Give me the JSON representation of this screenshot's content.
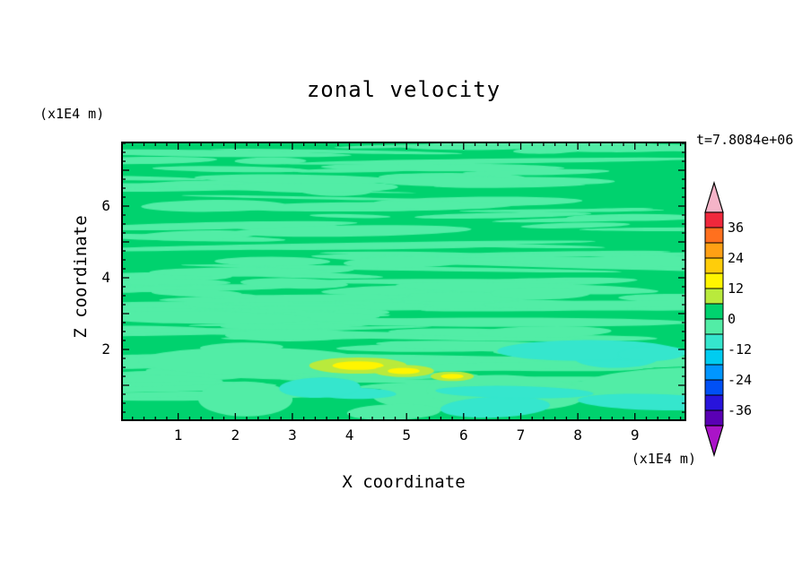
{
  "title": "zonal velocity",
  "time_label": "t=7.8084e+06",
  "axes": {
    "x_label": "X coordinate",
    "y_label": "Z coordinate",
    "x_unit": "(x1E4 m)",
    "y_unit": "(x1E4 m)",
    "x_ticks": [
      1,
      2,
      3,
      4,
      5,
      6,
      7,
      8,
      9
    ],
    "y_ticks": [
      2,
      4,
      6
    ]
  },
  "colorbar": {
    "labels": [
      36,
      24,
      12,
      0,
      -12,
      -24,
      -36
    ],
    "above_color": "#f5b4c8",
    "below_color": "#aa14c8",
    "levels": [
      -42,
      -36,
      -30,
      -24,
      -18,
      -12,
      -6,
      0,
      6,
      12,
      18,
      24,
      30,
      36,
      42
    ],
    "colors": [
      "#5a00b4",
      "#2814dc",
      "#0050f5",
      "#0096ff",
      "#00ccf0",
      "#35e6cd",
      "#52eda6",
      "#00d26e",
      "#b9ea3c",
      "#fff500",
      "#ffcd0a",
      "#ffa014",
      "#ff701e",
      "#f0283c"
    ]
  },
  "chart_data": {
    "type": "heatmap",
    "title": "zonal velocity",
    "xlabel": "X coordinate (x1E4 m)",
    "ylabel": "Z coordinate (x1E4 m)",
    "time": "t=7.8084e+06",
    "x_range": [
      0,
      9.9
    ],
    "y_range": [
      0,
      7.8
    ],
    "contour_interval": 6,
    "value_range_shown": [
      -42,
      42
    ],
    "field_description": "Zonal velocity field is mostly in the 0..6 band (green) with many thin horizontal streaks in the -6..0 band (mint); aqua -12..-6 patches and small yellow 12..18 maxima appear near z~1.5 between x~4 and x~6.",
    "render": {
      "seed": 11,
      "streaks": {
        "count": 140
      },
      "aqua_patches": {
        "count": 8
      },
      "bottom_blobs": {
        "count": 6
      },
      "yellow_spots": [
        [
          4.15,
          1.55,
          0.45,
          0.12
        ],
        [
          4.95,
          1.4,
          0.28,
          0.09
        ],
        [
          5.8,
          1.25,
          0.2,
          0.07
        ]
      ]
    }
  }
}
